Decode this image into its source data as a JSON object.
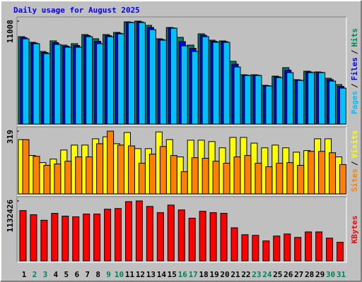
{
  "chart_data": [
    {
      "type": "bar",
      "title": "Daily usage for August 2025",
      "ylim": [
        0,
        11008
      ],
      "yticks": [
        11008
      ],
      "legend_separator": "/",
      "series": [
        {
          "name": "Pages",
          "color": "#00c0ff",
          "values": [
            9123,
            8596,
            7540,
            8520,
            8219,
            8219,
            9350,
            8596,
            9350,
            9651,
            10858,
            10858,
            10104,
            8973,
            10254,
            8369,
            7766,
            9350,
            8746,
            8746,
            6107,
            5203,
            5203,
            4072,
            4976,
            5504,
            4675,
            5504,
            5504,
            4599,
            3845
          ]
        },
        {
          "name": "Files",
          "color": "#0000ff",
          "values": [
            9240,
            8670,
            7650,
            8710,
            8330,
            8400,
            9460,
            8860,
            9460,
            9720,
            10890,
            10930,
            10330,
            9050,
            10290,
            8820,
            8100,
            9500,
            8860,
            8820,
            6410,
            5240,
            5240,
            4110,
            5050,
            5770,
            4710,
            5580,
            5540,
            4750,
            4030
          ]
        },
        {
          "name": "Hits",
          "color": "#00805c",
          "values": [
            9350,
            8746,
            7766,
            8897,
            8445,
            8596,
            9576,
            9123,
            9576,
            9802,
            10933,
            11008,
            10556,
            9123,
            10330,
            9274,
            8445,
            9651,
            8973,
            8897,
            6711,
            5278,
            5278,
            4147,
            5127,
            6032,
            4750,
            5655,
            5580,
            4901,
            4222
          ]
        }
      ]
    },
    {
      "type": "bar",
      "ylim": [
        0,
        319
      ],
      "yticks": [
        319
      ],
      "legend_separator": "/",
      "series": [
        {
          "name": "Sites",
          "color": "#ff8000",
          "values": [
            276,
            191,
            145,
            152,
            166,
            188,
            188,
            255,
            319,
            248,
            244,
            156,
            202,
            241,
            195,
            113,
            184,
            181,
            166,
            156,
            188,
            195,
            156,
            138,
            156,
            159,
            145,
            216,
            216,
            209,
            149
          ]
        },
        {
          "name": "Visits",
          "color": "#ffff00",
          "values": [
            276,
            195,
            159,
            177,
            223,
            248,
            248,
            280,
            290,
            255,
            312,
            230,
            230,
            315,
            276,
            188,
            273,
            273,
            266,
            234,
            287,
            287,
            258,
            234,
            248,
            234,
            212,
            220,
            280,
            280,
            188
          ]
        }
      ]
    },
    {
      "type": "bar",
      "ylim": [
        0,
        1132426
      ],
      "yticks": [
        1132426
      ],
      "categories": [
        "1",
        "2",
        "3",
        "4",
        "5",
        "6",
        "7",
        "8",
        "9",
        "10",
        "11",
        "12",
        "13",
        "14",
        "15",
        "16",
        "17",
        "18",
        "19",
        "20",
        "21",
        "22",
        "23",
        "24",
        "25",
        "26",
        "27",
        "28",
        "29",
        "30",
        "31"
      ],
      "category_colors": [
        "#000000",
        "#00805c",
        "#00805c",
        "#000000",
        "#000000",
        "#000000",
        "#000000",
        "#000000",
        "#00805c",
        "#00805c",
        "#000000",
        "#000000",
        "#000000",
        "#000000",
        "#000000",
        "#00805c",
        "#00805c",
        "#000000",
        "#000000",
        "#000000",
        "#000000",
        "#000000",
        "#00805c",
        "#00805c",
        "#000000",
        "#000000",
        "#000000",
        "#000000",
        "#000000",
        "#00805c",
        "#00805c"
      ],
      "series": [
        {
          "name": "KBytes",
          "color": "#ff0000",
          "values": [
            950000,
            872000,
            768000,
            898000,
            846000,
            833000,
            885000,
            885000,
            976000,
            989000,
            1119000,
            1132426,
            1028000,
            911000,
            1054000,
            963000,
            807000,
            937000,
            911000,
            898000,
            625000,
            495000,
            482000,
            377000,
            469000,
            508000,
            443000,
            547000,
            547000,
            430000,
            351000
          ]
        }
      ]
    }
  ]
}
